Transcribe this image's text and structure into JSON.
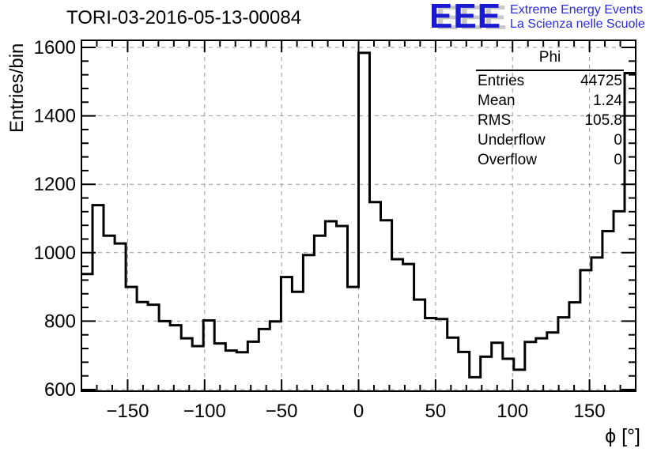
{
  "header": {
    "title": "TORI-03-2016-05-13-00084"
  },
  "logo": {
    "acronym": "EEE",
    "line1": "Extreme Energy Events",
    "line2": "La Scienza nelle Scuole",
    "blue": "#1a1ad2",
    "shadow_gray": "#c8c8c8"
  },
  "stats": {
    "title": "Phi",
    "rows": [
      {
        "label": "Entries",
        "value": "44725"
      },
      {
        "label": "Mean",
        "value": "1.24"
      },
      {
        "label": "RMS",
        "value": "105.8"
      },
      {
        "label": "Underflow",
        "value": "0"
      },
      {
        "label": "Overflow",
        "value": "0"
      }
    ]
  },
  "chart_data": {
    "type": "bar",
    "subtype": "step-histogram",
    "title": "TORI-03-2016-05-13-00084",
    "xlabel": "ϕ [°]",
    "ylabel": "Entries/bin",
    "x_min": -180,
    "x_max": 180,
    "n_bins": 50,
    "bin_width": 7.2,
    "values": [
      938,
      1139,
      1050,
      1027,
      900,
      856,
      848,
      800,
      788,
      750,
      727,
      802,
      735,
      714,
      709,
      740,
      777,
      799,
      929,
      886,
      993,
      1050,
      1092,
      1078,
      900,
      1584,
      1148,
      1095,
      981,
      967,
      863,
      809,
      806,
      752,
      710,
      636,
      696,
      737,
      690,
      658,
      739,
      750,
      767,
      811,
      855,
      949,
      986,
      1063,
      1121,
      1525
    ],
    "x_major_ticks": [
      -150,
      -100,
      -50,
      0,
      50,
      100,
      150
    ],
    "x_tick_labels": [
      "−150",
      "−100",
      "−50",
      "0",
      "50",
      "100",
      "150"
    ],
    "x_minor_step": 10,
    "y_major_ticks": [
      600,
      800,
      1000,
      1200,
      1400,
      1600
    ],
    "y_minor_step": 40,
    "ylim": [
      595.4,
      1620.8
    ],
    "grid": true,
    "legend": "stats-box-top-right",
    "line_color": "#000000",
    "grid_color": "#9a9a9a",
    "tick_label_size": 24
  }
}
